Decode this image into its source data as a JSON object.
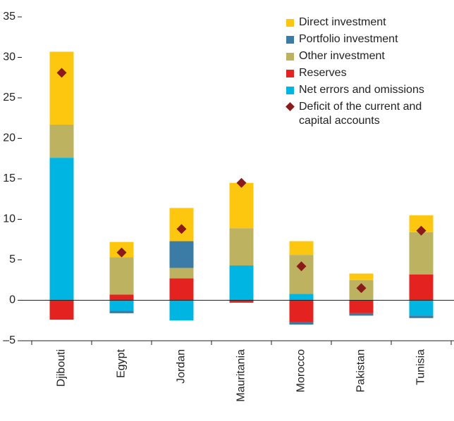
{
  "chart_data": {
    "type": "stacked_bar",
    "categories": [
      "Djibouti",
      "Egypt",
      "Jordan",
      "Mauritania",
      "Morocco",
      "Pakistan",
      "Tunisia"
    ],
    "series": [
      {
        "name": "Direct investment",
        "color": "#fdc70f",
        "values": [
          9.0,
          1.9,
          4.1,
          5.6,
          1.7,
          0.8,
          2.1
        ]
      },
      {
        "name": "Portfolio investment",
        "color": "#3a7ca5",
        "values": [
          0,
          -0.3,
          3.3,
          0,
          -0.3,
          -0.3,
          -0.3
        ]
      },
      {
        "name": "Other investment",
        "color": "#bdb25f",
        "values": [
          4.1,
          4.6,
          1.3,
          4.6,
          4.8,
          2.5,
          5.2
        ]
      },
      {
        "name": "Reserves",
        "color": "#e42320",
        "values": [
          -2.4,
          0.7,
          2.7,
          -0.3,
          -2.7,
          -1.6,
          3.2
        ]
      },
      {
        "name": "Net errors and omissions",
        "color": "#00b5e2",
        "values": [
          17.6,
          -1.3,
          -2.5,
          4.3,
          0.8,
          0,
          -1.9
        ]
      },
      {
        "name": "Deficit of the current and capital accounts",
        "color": "#8b1a1a",
        "type": "scatter",
        "values": [
          28.1,
          5.9,
          8.8,
          14.5,
          4.2,
          1.5,
          8.6
        ]
      }
    ],
    "ylim": [
      -5,
      35
    ],
    "yticks": [
      {
        "value": -5,
        "label": "–5"
      },
      0,
      5,
      10,
      15,
      20,
      25,
      30,
      35
    ]
  }
}
